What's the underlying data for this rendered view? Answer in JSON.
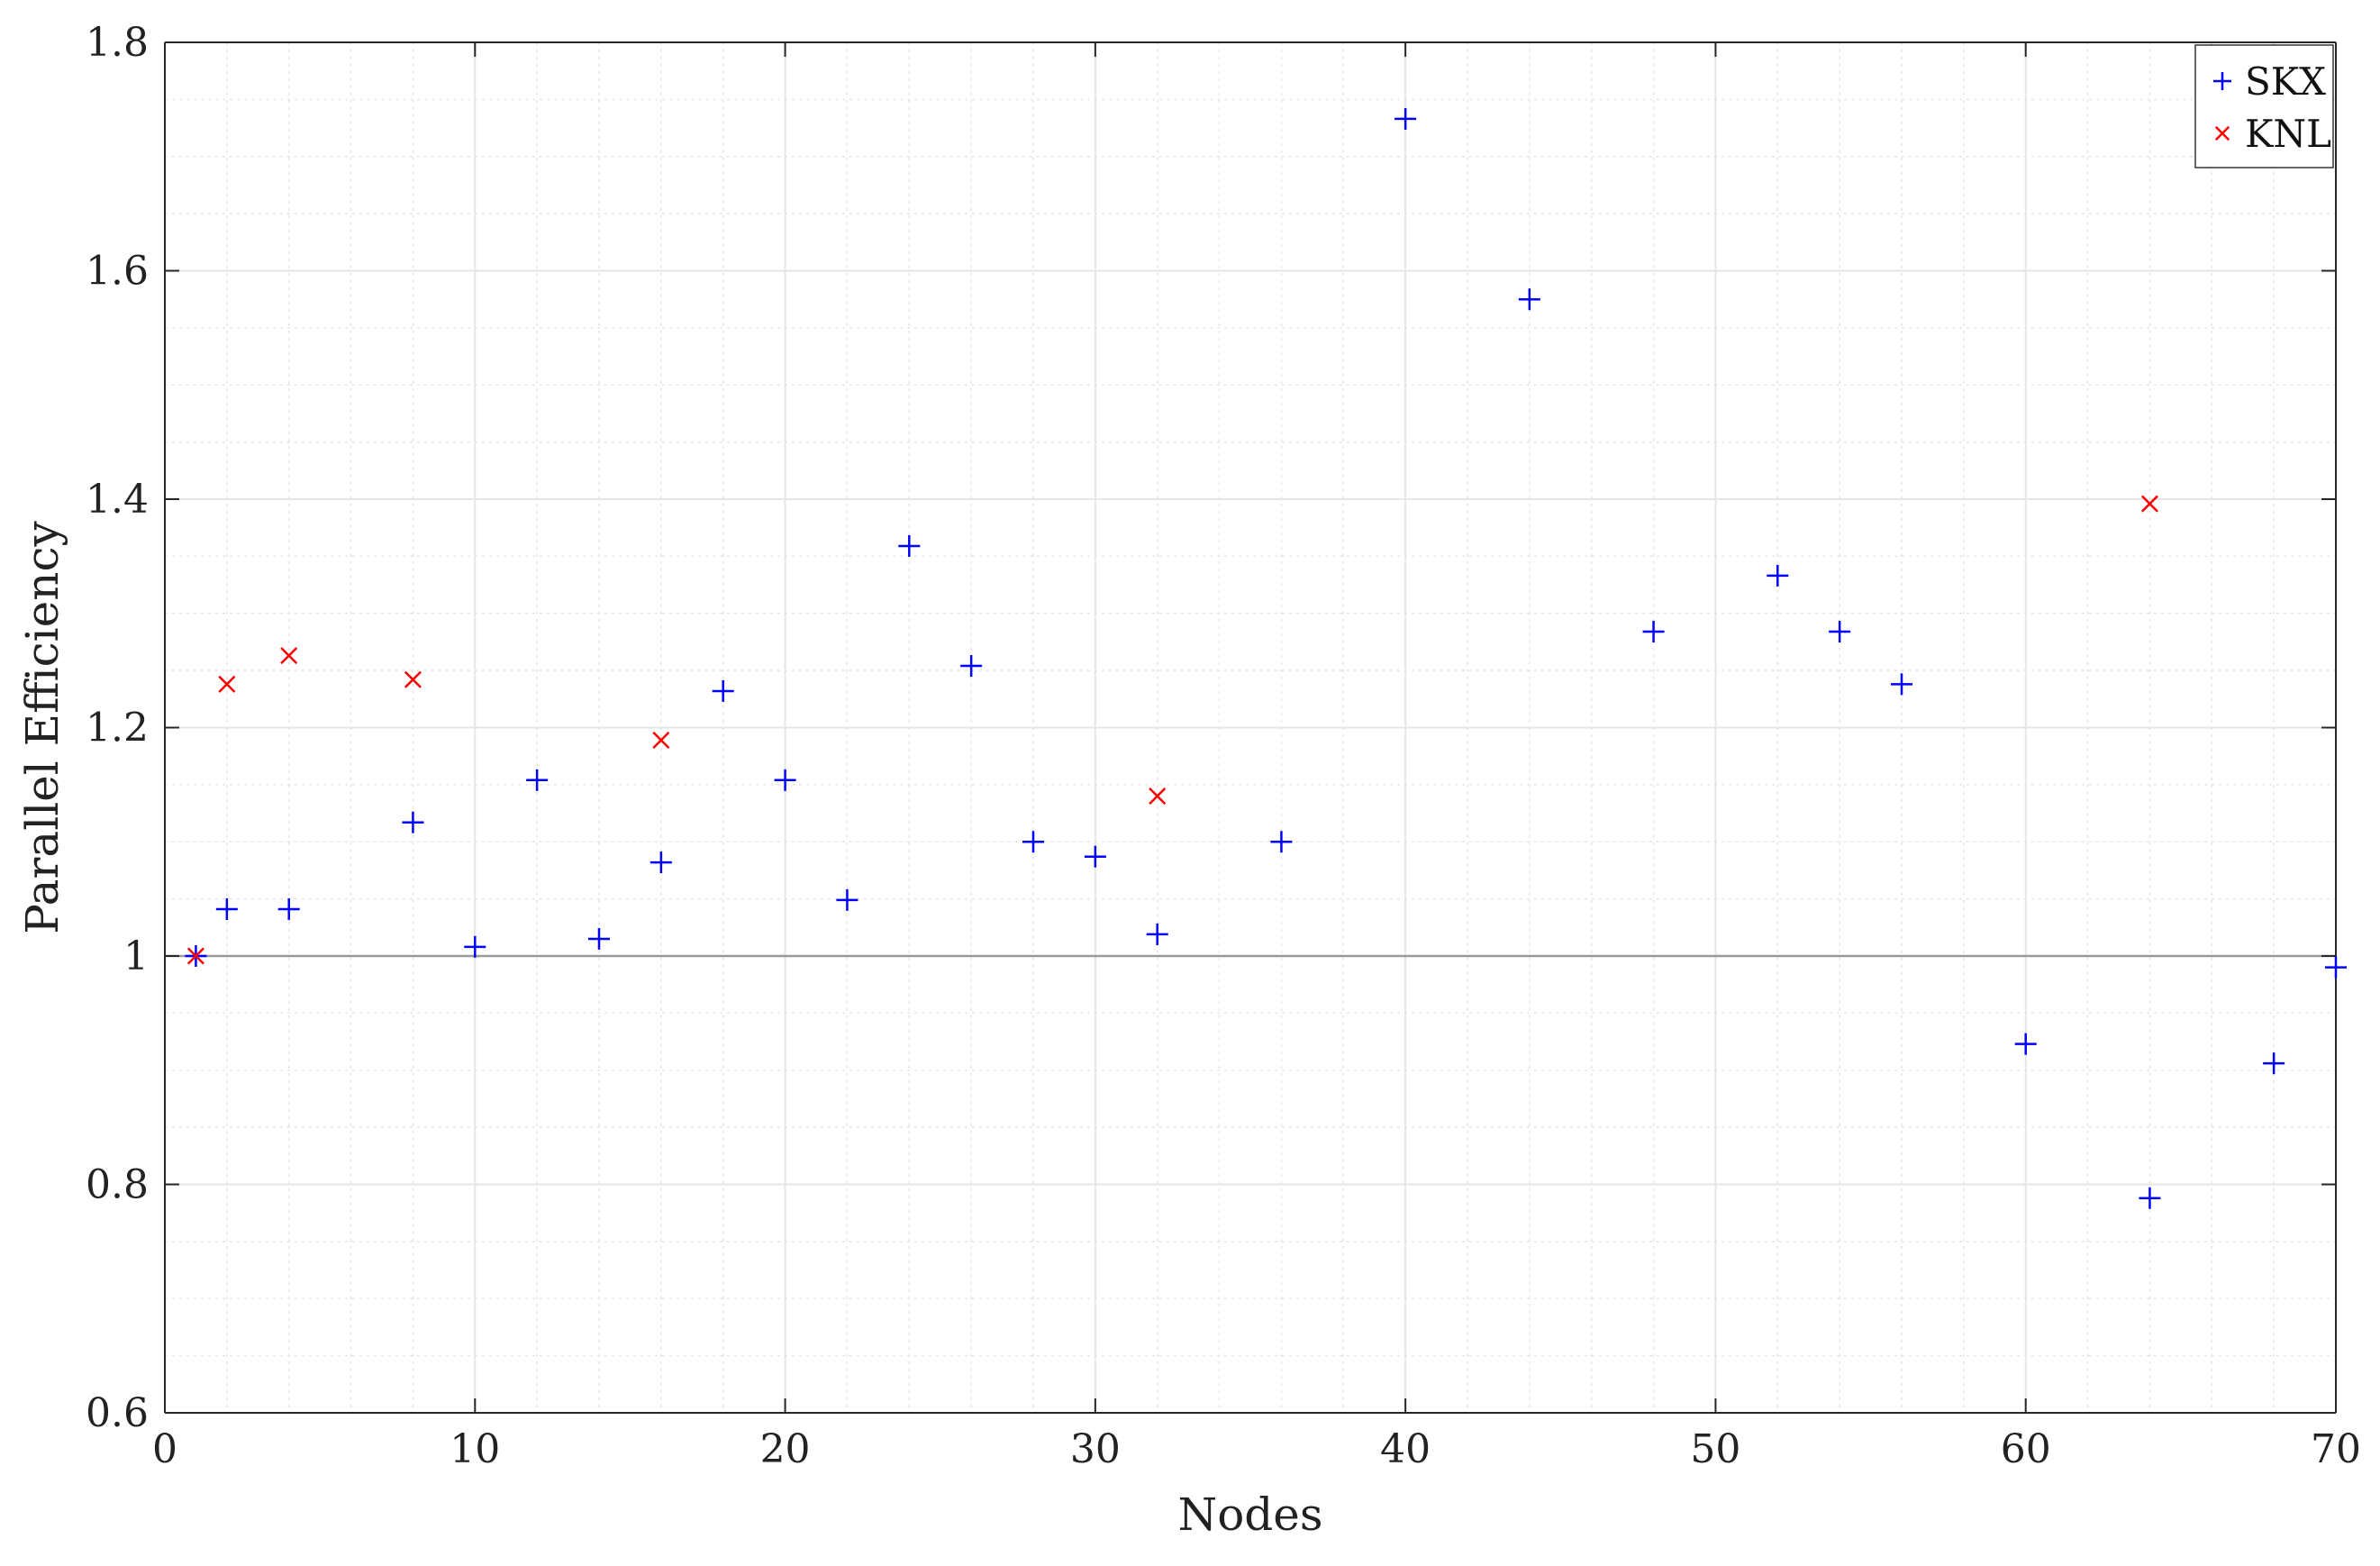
{
  "chart_data": {
    "type": "scatter",
    "xlabel": "Nodes",
    "ylabel": "Parallel Efficiency",
    "xlim": [
      0,
      70
    ],
    "ylim": [
      0.6,
      1.8
    ],
    "x_ticks": [
      0,
      10,
      20,
      30,
      40,
      50,
      60,
      70
    ],
    "y_ticks": [
      0.6,
      0.8,
      1,
      1.2,
      1.4,
      1.6,
      1.8
    ],
    "x_tick_labels": [
      "0",
      "10",
      "20",
      "30",
      "40",
      "50",
      "60",
      "70"
    ],
    "y_tick_labels": [
      "0.6",
      "0.8",
      "1",
      "1.2",
      "1.4",
      "1.6",
      "1.8"
    ],
    "grid": true,
    "minor_grid": true,
    "reference_line_y": 1,
    "legend_position": "top-right",
    "series": [
      {
        "name": "SKX",
        "marker": "plus",
        "color": "#0000ff",
        "x": [
          1,
          2,
          4,
          8,
          10,
          12,
          14,
          16,
          18,
          20,
          22,
          24,
          26,
          28,
          30,
          32,
          36,
          40,
          44,
          48,
          52,
          54,
          56,
          60,
          64,
          68,
          70
        ],
        "y": [
          1.0,
          1.041,
          1.041,
          1.117,
          1.008,
          1.154,
          1.015,
          1.082,
          1.232,
          1.154,
          1.049,
          1.359,
          1.254,
          1.1,
          1.087,
          1.019,
          1.1,
          1.733,
          1.575,
          1.284,
          1.333,
          1.284,
          1.238,
          0.923,
          0.788,
          0.906,
          0.99
        ]
      },
      {
        "name": "KNL",
        "marker": "x",
        "color": "#ff0000",
        "x": [
          1,
          2,
          4,
          8,
          16,
          32,
          64
        ],
        "y": [
          1.0,
          1.238,
          1.263,
          1.242,
          1.189,
          1.14,
          1.396
        ]
      }
    ]
  }
}
